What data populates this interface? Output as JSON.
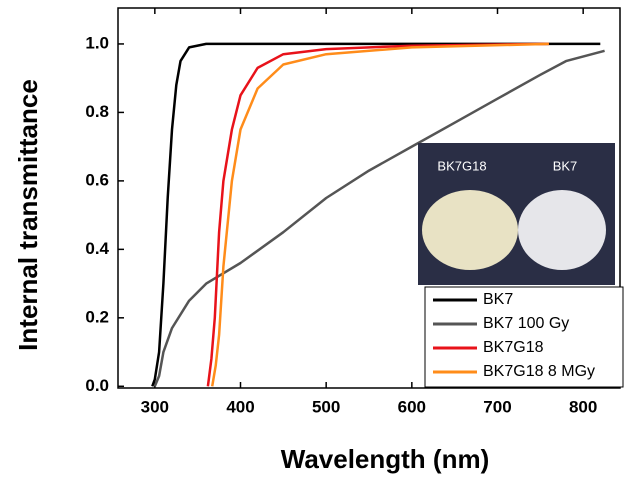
{
  "chart_data": {
    "type": "line",
    "xlabel": "Wavelength (nm)",
    "ylabel": "Internal transmittance",
    "xlim": [
      257,
      843
    ],
    "ylim": [
      -0.005,
      1.105
    ],
    "xticks": [
      300,
      400,
      500,
      600,
      700,
      800
    ],
    "yticks": [
      {
        "value": 0,
        "label": "0.0"
      },
      0.2,
      0.4,
      0.6,
      0.8,
      {
        "value": 1,
        "label": "1.0"
      }
    ],
    "legend": "lower right",
    "inset_labels": [
      "BK7G18",
      "BK7"
    ],
    "series": [
      {
        "name": "BK7",
        "color": "#000000",
        "x": [
          297,
          300,
          305,
          310,
          315,
          320,
          325,
          330,
          340,
          360,
          500,
          700,
          820
        ],
        "values": [
          0,
          0.02,
          0.1,
          0.3,
          0.55,
          0.75,
          0.88,
          0.95,
          0.99,
          1.0,
          1.0,
          1.0,
          1.0
        ]
      },
      {
        "name": "BK7 100 Gy",
        "color": "#555555",
        "x": [
          300,
          305,
          310,
          320,
          340,
          360,
          400,
          450,
          500,
          550,
          600,
          650,
          700,
          750,
          780,
          825
        ],
        "values": [
          0,
          0.03,
          0.1,
          0.17,
          0.25,
          0.3,
          0.36,
          0.45,
          0.55,
          0.63,
          0.7,
          0.77,
          0.84,
          0.91,
          0.95,
          0.98
        ]
      },
      {
        "name": "BK7G18",
        "color": "#e8121a",
        "x": [
          362,
          366,
          370,
          375,
          380,
          390,
          400,
          420,
          450,
          500,
          600,
          760
        ],
        "values": [
          0,
          0.08,
          0.2,
          0.45,
          0.6,
          0.75,
          0.85,
          0.93,
          0.97,
          0.985,
          0.995,
          1.0
        ]
      },
      {
        "name": "BK7G18 8 MGy",
        "color": "#ff8c1a",
        "x": [
          367,
          371,
          375,
          380,
          390,
          400,
          420,
          450,
          500,
          600,
          760
        ],
        "values": [
          0,
          0.06,
          0.15,
          0.35,
          0.6,
          0.75,
          0.87,
          0.94,
          0.97,
          0.99,
          1.0
        ]
      }
    ]
  }
}
